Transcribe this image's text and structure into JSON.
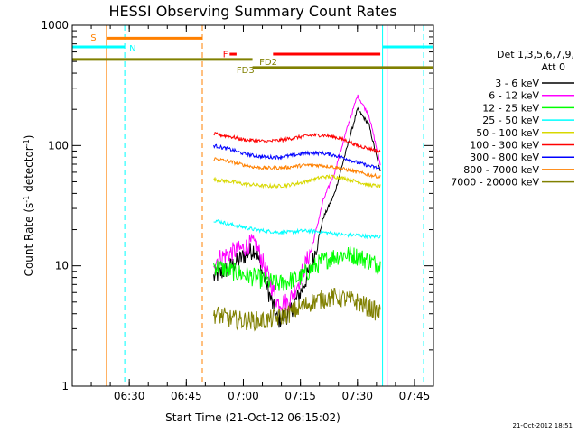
{
  "chart_data": {
    "type": "line",
    "title": "HESSI Observing Summary Count Rates",
    "xlabel": "Start Time (21-Oct-12 06:15:02)",
    "ylabel_main": "Count Rate (s",
    "ylabel_sup1": "-1",
    "ylabel_mid": " detector",
    "ylabel_sup2": "-1",
    "ylabel_end": ")",
    "yscale": "log",
    "ylim": [
      1,
      1000
    ],
    "xlim_minutes": [
      6.25,
      7.8333
    ],
    "x_ticks": [
      "06:30",
      "06:45",
      "07:00",
      "07:15",
      "07:30",
      "07:45"
    ],
    "y_ticks": [
      "1",
      "10",
      "100",
      "1000"
    ],
    "legend_header": [
      "Det 1,3,5,6,7,9,",
      "Att 0"
    ],
    "series": [
      {
        "name": "3 - 6 keV",
        "color": "#000000",
        "t": [
          6.87,
          6.95,
          7.0,
          7.05,
          7.1,
          7.15,
          7.2,
          7.25,
          7.3,
          7.35,
          7.4,
          7.45,
          7.5,
          7.55,
          7.6
        ],
        "v": [
          8,
          10,
          12,
          14,
          7,
          3.5,
          4,
          6,
          10,
          25,
          40,
          90,
          200,
          150,
          60
        ]
      },
      {
        "name": "6 - 12 keV",
        "color": "#ff00ff",
        "t": [
          6.87,
          6.95,
          7.0,
          7.05,
          7.1,
          7.15,
          7.2,
          7.25,
          7.3,
          7.35,
          7.4,
          7.45,
          7.5,
          7.55,
          7.6
        ],
        "v": [
          11,
          13,
          14,
          16,
          9,
          5,
          5,
          8,
          14,
          35,
          60,
          130,
          260,
          180,
          70
        ]
      },
      {
        "name": "12 - 25 keV",
        "color": "#00ff00",
        "t": [
          6.87,
          6.95,
          7.0,
          7.05,
          7.1,
          7.15,
          7.2,
          7.25,
          7.3,
          7.35,
          7.4,
          7.45,
          7.5,
          7.55,
          7.6
        ],
        "v": [
          10,
          9,
          8.5,
          8,
          7.5,
          7,
          7.5,
          8,
          9.5,
          11,
          12,
          12.5,
          12,
          11,
          10
        ]
      },
      {
        "name": "25 - 50 keV",
        "color": "#00ffff",
        "t": [
          6.87,
          6.95,
          7.0,
          7.05,
          7.1,
          7.15,
          7.2,
          7.25,
          7.3,
          7.35,
          7.4,
          7.45,
          7.5,
          7.55,
          7.6
        ],
        "v": [
          24,
          22,
          21,
          20,
          19.5,
          19,
          19,
          19.5,
          19.5,
          19,
          18.5,
          18,
          18,
          17.5,
          17.5
        ]
      },
      {
        "name": "50 - 100 keV",
        "color": "#d8d800",
        "t": [
          6.87,
          6.95,
          7.0,
          7.05,
          7.1,
          7.15,
          7.2,
          7.25,
          7.3,
          7.35,
          7.4,
          7.45,
          7.5,
          7.55,
          7.6
        ],
        "v": [
          52,
          50,
          48,
          47,
          46,
          46,
          47,
          49,
          52,
          55,
          55,
          53,
          50,
          47,
          46
        ]
      },
      {
        "name": "100 - 300 keV",
        "color": "#ff0000",
        "t": [
          6.87,
          6.95,
          7.0,
          7.05,
          7.1,
          7.15,
          7.2,
          7.25,
          7.3,
          7.35,
          7.4,
          7.45,
          7.5,
          7.55,
          7.6
        ],
        "v": [
          125,
          118,
          112,
          110,
          108,
          110,
          114,
          118,
          122,
          122,
          118,
          110,
          100,
          95,
          88
        ]
      },
      {
        "name": "300 - 800 keV",
        "color": "#0000ff",
        "t": [
          6.87,
          6.95,
          7.0,
          7.05,
          7.1,
          7.15,
          7.2,
          7.25,
          7.3,
          7.35,
          7.4,
          7.45,
          7.5,
          7.55,
          7.6
        ],
        "v": [
          100,
          92,
          86,
          82,
          80,
          80,
          82,
          85,
          87,
          86,
          83,
          78,
          72,
          68,
          64
        ]
      },
      {
        "name": "800 - 7000 keV",
        "color": "#ff8000",
        "t": [
          6.87,
          6.95,
          7.0,
          7.05,
          7.1,
          7.15,
          7.2,
          7.25,
          7.3,
          7.35,
          7.4,
          7.45,
          7.5,
          7.55,
          7.6
        ],
        "v": [
          78,
          73,
          69,
          66,
          65,
          65,
          66,
          68,
          69,
          68,
          66,
          63,
          60,
          57,
          55
        ]
      },
      {
        "name": "7000 - 20000 keV",
        "color": "#808000",
        "t": [
          6.87,
          6.95,
          7.0,
          7.05,
          7.1,
          7.15,
          7.2,
          7.25,
          7.3,
          7.35,
          7.4,
          7.45,
          7.5,
          7.55,
          7.6
        ],
        "v": [
          4,
          3.6,
          3.5,
          3.5,
          3.5,
          3.7,
          4,
          4.5,
          5,
          5.3,
          5.5,
          5.3,
          5,
          4.5,
          4
        ]
      }
    ],
    "flag_bars": [
      {
        "label": "S",
        "color": "#ff8000",
        "level": 780,
        "t0": 6.4,
        "t1": 6.82
      },
      {
        "label": "N",
        "color": "#00ffff",
        "level": 660,
        "t0": 6.25,
        "t1": 6.48
      },
      {
        "label": "N",
        "color": "#00ffff",
        "level": 660,
        "t0": 7.61,
        "t1": 7.8333
      },
      {
        "label": "F",
        "color": "#ff0000",
        "level": 575,
        "t0": 6.94,
        "t1": 6.97
      },
      {
        "label": "FD2",
        "color": "#ff0000",
        "level": 575,
        "t0": 7.13,
        "t1": 7.6
      },
      {
        "label": "FD3",
        "color": "#808000",
        "level": 520,
        "t0": 6.25,
        "t1": 7.04
      },
      {
        "label": "FD3",
        "color": "#808000",
        "level": 445,
        "t0": 7.04,
        "t1": 7.8333
      }
    ],
    "segment_text": {
      "S": "S",
      "N": "N",
      "F": "F",
      "FD2": "FD2",
      "FD3": "FD3"
    },
    "vlines": [
      {
        "t": 6.4,
        "color": "#ff8000",
        "style": "solid"
      },
      {
        "t": 6.48,
        "color": "#00ffff",
        "style": "dashed"
      },
      {
        "t": 6.82,
        "color": "#ff8000",
        "style": "dashed"
      },
      {
        "t": 7.61,
        "color": "#00ffff",
        "style": "solid"
      },
      {
        "t": 7.63,
        "color": "#ff00ff",
        "style": "solid"
      },
      {
        "t": 7.79,
        "color": "#00ffff",
        "style": "dashed"
      }
    ],
    "grid": false,
    "legend_position": "right"
  },
  "footer": {
    "timestamp": "21-Oct-2012 18:51"
  }
}
